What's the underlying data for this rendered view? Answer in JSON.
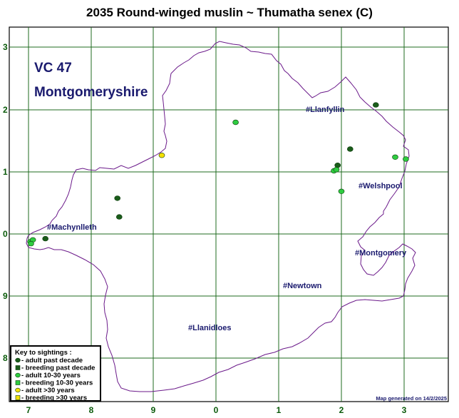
{
  "title": "2035 Round-winged muslin ~ Thumatha senex (C)",
  "vc_code": "VC 47",
  "vc_name": "Montgomeryshire",
  "credit": "Map generated on 14/2/2025",
  "colors": {
    "grid": "#1f6b1f",
    "boundary": "#6b1a8a",
    "adult_past_decade": "#1a5c1a",
    "adult_10_30": "#2ecc40",
    "adult_over_30": "#f5e000",
    "label": "#1a1a6e"
  },
  "axis_ticks": {
    "bottom": [
      "7",
      "8",
      "9",
      "0",
      "1",
      "2",
      "3"
    ],
    "left": [
      "3",
      "2",
      "1",
      "0",
      "9",
      "8"
    ]
  },
  "towns": [
    {
      "name": "#Llanfyllin"
    },
    {
      "name": "#Welshpool"
    },
    {
      "name": "#Machynlleth"
    },
    {
      "name": "#Montgomery"
    },
    {
      "name": "#Newtown"
    },
    {
      "name": "#Llanidloes"
    }
  ],
  "legend": {
    "heading": "Key to sightings :",
    "items": [
      {
        "label": " - adult past decade",
        "shape": "circle",
        "color": "#1a5c1a"
      },
      {
        "label": " - breeding past decade",
        "shape": "square",
        "color": "#1a5c1a"
      },
      {
        "label": " - adult 10-30 years",
        "shape": "circle",
        "color": "#2ecc40"
      },
      {
        "label": " - breeding 10-30 years",
        "shape": "square",
        "color": "#2ecc40"
      },
      {
        "label": " - adult >30 years",
        "shape": "circle",
        "color": "#f5e000"
      },
      {
        "label": " - breeding >30 years",
        "shape": "square",
        "color": "#f5e000"
      }
    ]
  },
  "sightings": [
    {
      "category": "adult_past_decade",
      "e": 7.27,
      "n": 9.92
    },
    {
      "category": "adult_past_decade",
      "e": 8.42,
      "n": 0.57
    },
    {
      "category": "adult_past_decade",
      "e": 8.45,
      "n": 0.27
    },
    {
      "category": "adult_past_decade",
      "e": 2.55,
      "n": 2.07
    },
    {
      "category": "adult_past_decade",
      "e": 2.14,
      "n": 1.36
    },
    {
      "category": "adult_past_decade",
      "e": 1.94,
      "n": 1.1
    },
    {
      "category": "adult_10_30",
      "e": 7.03,
      "n": 9.87
    },
    {
      "category": "adult_10_30",
      "e": 7.07,
      "n": 9.9
    },
    {
      "category": "adult_10_30",
      "e": 7.04,
      "n": 9.84
    },
    {
      "category": "adult_10_30",
      "e": 0.31,
      "n": 1.79
    },
    {
      "category": "adult_10_30",
      "e": 2.86,
      "n": 1.23
    },
    {
      "category": "adult_10_30",
      "e": 3.03,
      "n": 1.2
    },
    {
      "category": "adult_10_30",
      "e": 1.88,
      "n": 1.01
    },
    {
      "category": "adult_10_30",
      "e": 1.92,
      "n": 1.03
    },
    {
      "category": "adult_10_30",
      "e": 2.0,
      "n": 0.68
    },
    {
      "category": "adult_over_30",
      "e": 9.13,
      "n": 1.26
    }
  ]
}
